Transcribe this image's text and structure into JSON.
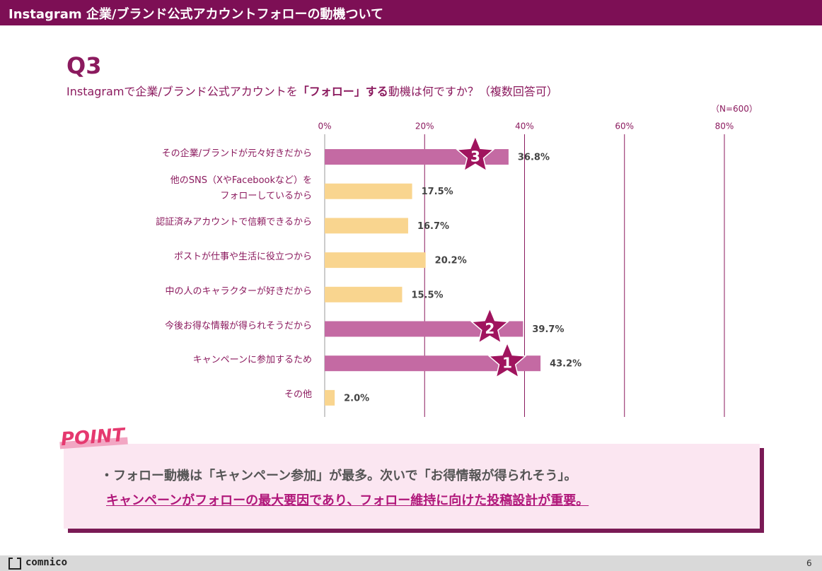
{
  "header": {
    "title": "Instagram 企業/ブランド公式アカウントフォローの動機ついて"
  },
  "question": {
    "number": "Q3",
    "parts": [
      "Instagramで企業/ブランド公式アカウントを",
      "「フォロー」する",
      "動機は何ですか？（複数回答可）"
    ]
  },
  "chart_data": {
    "type": "bar",
    "orientation": "horizontal",
    "note": "（N=600）",
    "categories": [
      "その企業/ブランドが元々好きだから",
      "他のSNS（XやFacebookなど）を\nフォローしているから",
      "認証済みアカウントで信頼できるから",
      "ポストが仕事や生活に役立つから",
      "中の人のキャラクターが好きだから",
      "今後お得な情報が得られそうだから",
      "キャンペーンに参加するため",
      "その他"
    ],
    "values": [
      36.8,
      17.5,
      16.7,
      20.2,
      15.5,
      39.7,
      43.2,
      2.0
    ],
    "value_labels": [
      "36.8%",
      "17.5%",
      "16.7%",
      "20.2%",
      "15.5%",
      "39.7%",
      "43.2%",
      "2.0%"
    ],
    "colors": [
      "#c46aa3",
      "#f9d58f",
      "#f9d58f",
      "#f9d58f",
      "#f9d58f",
      "#c46aa3",
      "#c46aa3",
      "#f9d58f"
    ],
    "ranks": [
      3,
      null,
      null,
      null,
      null,
      2,
      1,
      null
    ],
    "xlim": [
      0,
      80
    ],
    "xticks": [
      {
        "value": 0,
        "label": "0%"
      },
      {
        "value": 20,
        "label": "20%"
      },
      {
        "value": 40,
        "label": "40%"
      },
      {
        "value": 60,
        "label": "60%"
      },
      {
        "value": 80,
        "label": "80%"
      }
    ],
    "grid": true
  },
  "point": {
    "heading": "POINT",
    "lines": [
      "・フォロー動機は「キャンペーン参加」が最多。次いで「お得情報が得られそう」。",
      "キャンペーンがフォローの最大要因であり、フォロー維持に向けた投稿設計が重要。"
    ]
  },
  "footer": {
    "brand": "comnico",
    "page": "6"
  }
}
